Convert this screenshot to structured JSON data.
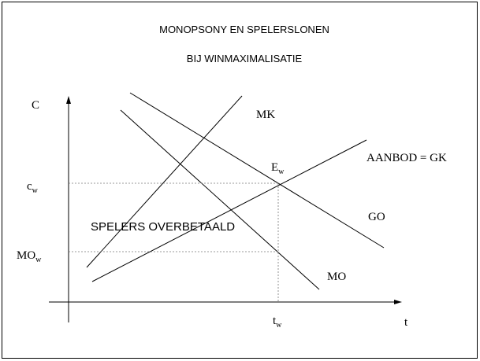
{
  "header": {
    "title": [
      "MONOPSONY EN SPELERSLONEN",
      "BIJ WINMAXIMALISATIE"
    ]
  },
  "axes": {
    "y": "C",
    "x": "t"
  },
  "curves": {
    "mk": "MK",
    "mo": "MO",
    "go": "GO",
    "supply": "AANBOD = GK"
  },
  "points": {
    "e": {
      "main": "E",
      "sub": "w"
    },
    "c": {
      "main": "c",
      "sub": "w"
    },
    "mo": {
      "main": "MO",
      "sub": "w"
    },
    "t": {
      "main": "t",
      "sub": "w"
    }
  },
  "region": "SPELERS OVERBETAALD"
}
